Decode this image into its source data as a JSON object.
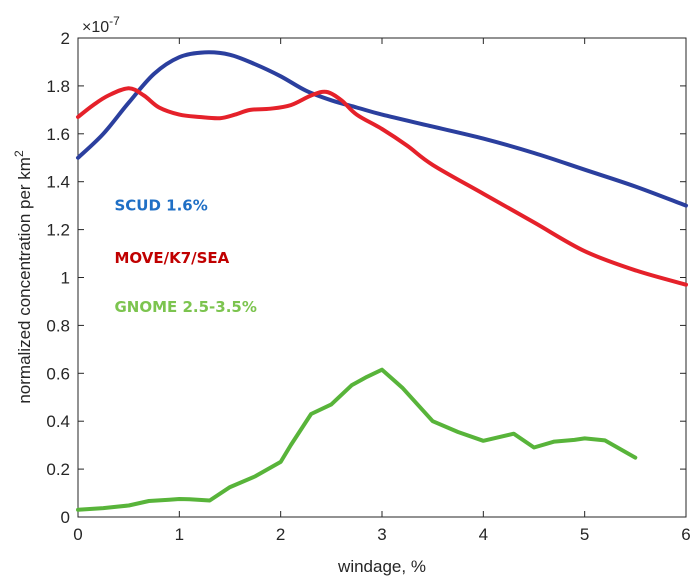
{
  "chart_data": {
    "type": "line",
    "title": "",
    "xlabel": "windage, %",
    "ylabel": "normalized concentration per km",
    "ylabel_superscript": "2",
    "y_exponent_label": "×10",
    "y_exponent_power": "-7",
    "xlim": [
      0,
      6
    ],
    "ylim": [
      0,
      2
    ],
    "x_ticks": [
      0,
      1,
      2,
      3,
      4,
      5,
      6
    ],
    "x_tick_labels": [
      "0",
      "1",
      "2",
      "3",
      "4",
      "5",
      "6"
    ],
    "y_ticks": [
      0,
      0.2,
      0.4,
      0.6,
      0.8,
      1,
      1.2,
      1.4,
      1.6,
      1.8,
      2
    ],
    "y_tick_labels": [
      "0",
      "0.2",
      "0.4",
      "0.6",
      "0.8",
      "1",
      "1.2",
      "1.4",
      "1.6",
      "1.8",
      "2"
    ],
    "grid": false,
    "series": [
      {
        "name": "SCUD 1.6%",
        "color": "#2b3f9e",
        "x": [
          0,
          0.25,
          0.5,
          0.75,
          1.0,
          1.25,
          1.5,
          1.75,
          2.0,
          2.25,
          2.5,
          2.75,
          3.0,
          3.5,
          4.0,
          4.5,
          5.0,
          5.5,
          6.0
        ],
        "y": [
          1.5,
          1.6,
          1.73,
          1.85,
          1.92,
          1.94,
          1.93,
          1.89,
          1.84,
          1.78,
          1.74,
          1.71,
          1.68,
          1.63,
          1.58,
          1.52,
          1.45,
          1.38,
          1.3
        ]
      },
      {
        "name": "MOVE/K7/SEA",
        "color": "#e5212a",
        "x": [
          0,
          0.15,
          0.3,
          0.5,
          0.65,
          0.8,
          1.0,
          1.2,
          1.4,
          1.55,
          1.7,
          1.9,
          2.1,
          2.3,
          2.45,
          2.6,
          2.75,
          3.0,
          3.25,
          3.5,
          4.0,
          4.5,
          5.0,
          5.5,
          6.0
        ],
        "y": [
          1.67,
          1.72,
          1.76,
          1.79,
          1.76,
          1.71,
          1.68,
          1.67,
          1.665,
          1.68,
          1.7,
          1.705,
          1.72,
          1.76,
          1.775,
          1.74,
          1.68,
          1.62,
          1.55,
          1.47,
          1.35,
          1.23,
          1.11,
          1.03,
          0.97
        ]
      },
      {
        "name": "GNOME 2.5-3.5%",
        "color": "#58b43a",
        "x": [
          0,
          0.25,
          0.5,
          0.7,
          0.9,
          1.0,
          1.1,
          1.3,
          1.5,
          1.75,
          2.0,
          2.1,
          2.3,
          2.5,
          2.7,
          2.85,
          3.0,
          3.2,
          3.5,
          3.75,
          4.0,
          4.3,
          4.5,
          4.7,
          4.9,
          5.0,
          5.2,
          5.5
        ],
        "y": [
          0.03,
          0.037,
          0.048,
          0.067,
          0.072,
          0.075,
          0.074,
          0.069,
          0.125,
          0.17,
          0.23,
          0.3,
          0.43,
          0.47,
          0.55,
          0.585,
          0.615,
          0.54,
          0.4,
          0.355,
          0.318,
          0.348,
          0.29,
          0.315,
          0.322,
          0.328,
          0.32,
          0.248
        ]
      }
    ],
    "annotations": [
      {
        "text": "SCUD 1.6%",
        "color": "#1f6fc5",
        "x": 0.36,
        "y": 1.28
      },
      {
        "text": "MOVE/K7/SEA",
        "color": "#c00000",
        "x": 0.36,
        "y": 1.06
      },
      {
        "text": "GNOME 2.5-3.5%",
        "color": "#7cc44f",
        "x": 0.36,
        "y": 0.855
      }
    ]
  }
}
